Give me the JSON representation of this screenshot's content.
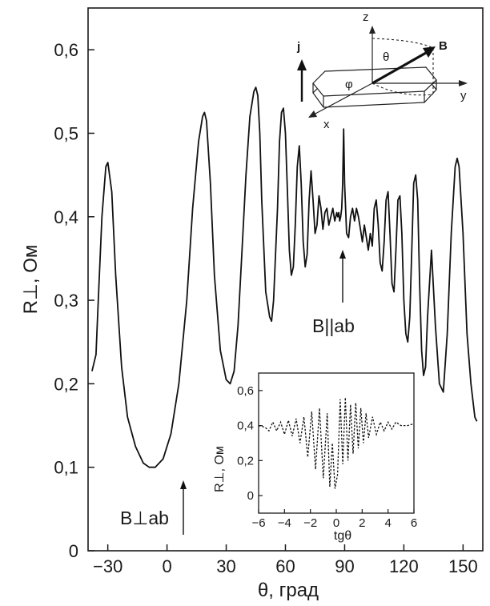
{
  "chart_data": [
    {
      "type": "line",
      "title": "",
      "xlabel": "θ, град",
      "ylabel": "R⊥, Ом",
      "xlim": [
        -40,
        160
      ],
      "ylim": [
        0,
        0.65
      ],
      "x_ticks": [
        "−30",
        "0",
        "30",
        "60",
        "90",
        "120",
        "150"
      ],
      "x_tick_values": [
        -30,
        0,
        30,
        60,
        90,
        120,
        150
      ],
      "y_ticks": [
        "0",
        "0,1",
        "0,2",
        "0,3",
        "0,4",
        "0,5",
        "0,6"
      ],
      "y_tick_values": [
        0,
        0.1,
        0.2,
        0.3,
        0.4,
        0.5,
        0.6
      ],
      "series": [
        {
          "x": [
            -38,
            -36,
            -35,
            -33,
            -31,
            -30,
            -28,
            -26,
            -23,
            -20,
            -16,
            -12,
            -9,
            -6,
            -2,
            2,
            6,
            10,
            13,
            16,
            18,
            19,
            20,
            22,
            24,
            27,
            30,
            32,
            34,
            36,
            38,
            40,
            42,
            44,
            45,
            46,
            47,
            48,
            50,
            52,
            53,
            54,
            56,
            57,
            58,
            59,
            60,
            61,
            62,
            63,
            64,
            65,
            66,
            67,
            68,
            69,
            70,
            71,
            72,
            73,
            74,
            75,
            76,
            77,
            78,
            79,
            80,
            81,
            82,
            83,
            84,
            85,
            86,
            86.5,
            87,
            87.5,
            88,
            88.5,
            89,
            89.5,
            90,
            91,
            92,
            93,
            94,
            95,
            96,
            97,
            98,
            99,
            100,
            101,
            102,
            103,
            104,
            105,
            106,
            107,
            108,
            109,
            110,
            111,
            112,
            113,
            114,
            115,
            116,
            117,
            118,
            119,
            120,
            121,
            122,
            123,
            124,
            125,
            126,
            127,
            128,
            129,
            130,
            131,
            132,
            134,
            136,
            138,
            140,
            142,
            144,
            146,
            147,
            148,
            150,
            152,
            154,
            156,
            157
          ],
          "y": [
            0.215,
            0.235,
            0.29,
            0.4,
            0.46,
            0.465,
            0.43,
            0.33,
            0.22,
            0.16,
            0.125,
            0.105,
            0.1,
            0.1,
            0.11,
            0.14,
            0.2,
            0.3,
            0.41,
            0.49,
            0.52,
            0.525,
            0.515,
            0.44,
            0.33,
            0.24,
            0.205,
            0.2,
            0.215,
            0.27,
            0.36,
            0.45,
            0.52,
            0.55,
            0.555,
            0.545,
            0.5,
            0.42,
            0.31,
            0.28,
            0.275,
            0.3,
            0.41,
            0.49,
            0.525,
            0.53,
            0.5,
            0.43,
            0.36,
            0.33,
            0.34,
            0.39,
            0.46,
            0.485,
            0.44,
            0.37,
            0.34,
            0.355,
            0.42,
            0.455,
            0.42,
            0.38,
            0.39,
            0.425,
            0.41,
            0.385,
            0.405,
            0.41,
            0.39,
            0.4,
            0.41,
            0.395,
            0.405,
            0.4,
            0.405,
            0.395,
            0.4,
            0.41,
            0.44,
            0.505,
            0.44,
            0.38,
            0.375,
            0.4,
            0.41,
            0.395,
            0.41,
            0.4,
            0.385,
            0.37,
            0.39,
            0.375,
            0.36,
            0.38,
            0.365,
            0.41,
            0.42,
            0.39,
            0.345,
            0.335,
            0.37,
            0.42,
            0.43,
            0.38,
            0.32,
            0.31,
            0.36,
            0.42,
            0.425,
            0.38,
            0.3,
            0.26,
            0.25,
            0.28,
            0.36,
            0.44,
            0.45,
            0.42,
            0.32,
            0.24,
            0.21,
            0.22,
            0.28,
            0.36,
            0.27,
            0.2,
            0.19,
            0.26,
            0.38,
            0.46,
            0.47,
            0.46,
            0.38,
            0.26,
            0.2,
            0.16,
            0.155
          ]
        }
      ],
      "annotations": [
        {
          "text": "B⊥ab",
          "x": 0,
          "y": 0.02
        },
        {
          "text": "B||ab",
          "x": 90,
          "y": 0.33
        }
      ]
    },
    {
      "type": "line",
      "title": "",
      "xlabel": "tgθ",
      "ylabel": "R⊥, Ом",
      "xlim": [
        -6,
        6
      ],
      "ylim": [
        -0.1,
        0.7
      ],
      "x_ticks": [
        "−6",
        "−4",
        "−2",
        "0",
        "2",
        "4",
        "6"
      ],
      "x_tick_values": [
        -6,
        -4,
        -2,
        0,
        2,
        4,
        6
      ],
      "y_ticks": [
        "0",
        "0,2",
        "0,4",
        "0,6"
      ],
      "y_tick_values": [
        0,
        0.2,
        0.4,
        0.6
      ],
      "series": [
        {
          "style": "dashed",
          "x": [
            -6,
            -5.5,
            -5.2,
            -4.9,
            -4.6,
            -4.3,
            -4.0,
            -3.7,
            -3.4,
            -3.1,
            -2.8,
            -2.5,
            -2.2,
            -1.9,
            -1.6,
            -1.3,
            -1.0,
            -0.7,
            -0.5,
            -0.3,
            -0.1,
            0.1,
            0.3,
            0.5,
            0.7,
            0.9,
            1.1,
            1.3,
            1.5,
            1.7,
            1.9,
            2.1,
            2.3,
            2.5,
            2.8,
            3.1,
            3.4,
            3.7,
            4.0,
            4.3,
            4.6,
            5.0,
            5.5,
            6
          ],
          "y": [
            0.4,
            0.39,
            0.37,
            0.42,
            0.37,
            0.42,
            0.35,
            0.43,
            0.34,
            0.44,
            0.3,
            0.45,
            0.22,
            0.48,
            0.15,
            0.5,
            0.1,
            0.47,
            0.05,
            0.3,
            0.04,
            0.12,
            0.55,
            0.18,
            0.56,
            0.2,
            0.52,
            0.24,
            0.53,
            0.27,
            0.5,
            0.3,
            0.47,
            0.33,
            0.45,
            0.35,
            0.42,
            0.37,
            0.42,
            0.38,
            0.42,
            0.4,
            0.4,
            0.41
          ]
        }
      ]
    }
  ],
  "schematic": {
    "labels": {
      "z": "z",
      "y": "y",
      "x": "x",
      "j": "j",
      "B": "B",
      "theta": "θ",
      "phi": "φ"
    }
  }
}
